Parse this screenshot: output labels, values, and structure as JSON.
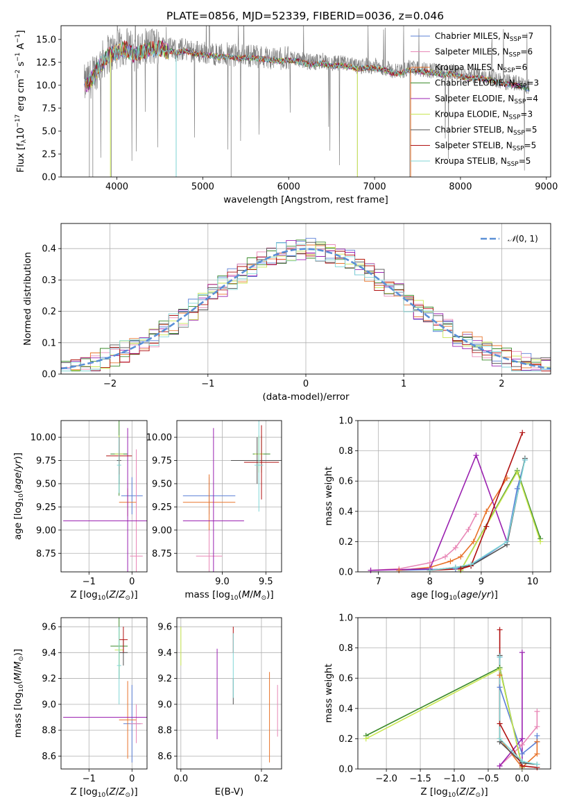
{
  "title": "PLATE=0856, MJD=52339, FIBERID=0036, z=0.046",
  "colors": {
    "data": "#808080",
    "chabrier_miles": "#5a7fd6",
    "salpeter_miles": "#e887b6",
    "kroupa_miles": "#e8732a",
    "chabrier_elodie": "#3a8a2a",
    "salpeter_elodie": "#9a20b0",
    "kroupa_elodie": "#c8e650",
    "chabrier_stelib": "#505050",
    "salpeter_stelib": "#b01010",
    "kroupa_stelib": "#7fd6d6",
    "gaussian": "#5a8fd6"
  },
  "chart_data": [
    {
      "type": "line",
      "title": "PLATE=0856, MJD=52339, FIBERID=0036, z=0.046",
      "xlabel": "wavelength [Angstrom, rest frame]",
      "ylabel": "Flux [fλ10⁻¹⁷ erg cm⁻² s⁻¹ A⁻¹]",
      "xlim": [
        3350,
        9050
      ],
      "ylim": [
        0,
        16.5
      ],
      "xticks": [
        4000,
        5000,
        6000,
        7000,
        8000,
        9000
      ],
      "yticks": [
        0.0,
        2.5,
        5.0,
        7.5,
        10.0,
        12.5,
        15.0
      ],
      "legend_position": "top-right",
      "data_series": {
        "name": "data",
        "x": [
          3620,
          3700,
          3800,
          3900,
          4000,
          4100,
          4200,
          4300,
          4400,
          4500,
          4600,
          4700,
          4800,
          4900,
          5000,
          5100,
          5200,
          5300,
          5400,
          5500,
          5600,
          5700,
          5800,
          5900,
          6000,
          6100,
          6200,
          6300,
          6400,
          6500,
          6600,
          6700,
          6800,
          6900,
          7000,
          7100,
          7200,
          7300,
          7400,
          7500,
          7600,
          7700,
          7800,
          7900,
          8000,
          8100,
          8200,
          8300,
          8400,
          8500,
          8600,
          8700,
          8800
        ],
        "y": [
          10.0,
          10.8,
          12.3,
          13.5,
          13.8,
          14.3,
          13.6,
          13.9,
          14.2,
          14.3,
          14.0,
          13.8,
          14.0,
          13.7,
          13.6,
          13.5,
          13.3,
          13.4,
          13.2,
          13.3,
          13.2,
          13.1,
          13.0,
          12.9,
          13.0,
          12.9,
          12.6,
          12.5,
          12.7,
          12.3,
          12.4,
          12.3,
          12.0,
          12.2,
          12.1,
          12.0,
          11.6,
          11.5,
          11.9,
          11.8,
          11.7,
          11.6,
          11.4,
          11.5,
          11.2,
          11.0,
          11.1,
          10.9,
          10.7,
          10.4,
          10.3,
          10.1,
          9.8
        ]
      },
      "series": [
        {
          "name": "Chabrier MILES, N_SSP=7",
          "color_key": "chabrier_miles"
        },
        {
          "name": "Salpeter MILES, N_SSP=6",
          "color_key": "salpeter_miles"
        },
        {
          "name": "Kroupa MILES, N_SSP=6",
          "color_key": "kroupa_miles"
        },
        {
          "name": "Chabrier ELODIE, N_SSP=3",
          "color_key": "chabrier_elodie"
        },
        {
          "name": "Salpeter ELODIE, N_SSP=4",
          "color_key": "salpeter_elodie"
        },
        {
          "name": "Kroupa ELODIE, N_SSP=3",
          "color_key": "kroupa_elodie"
        },
        {
          "name": "Chabrier STELIB, N_SSP=5",
          "color_key": "chabrier_stelib"
        },
        {
          "name": "Salpeter STELIB, N_SSP=5",
          "color_key": "salpeter_stelib"
        },
        {
          "name": "Kroupa STELIB, N_SSP=5",
          "color_key": "kroupa_stelib"
        }
      ],
      "legend": [
        {
          "label": "Chabrier MILES, N",
          "sub": "SSP",
          "tail": "=7",
          "color_key": "chabrier_miles"
        },
        {
          "label": "Salpeter MILES, N",
          "sub": "SSP",
          "tail": "=6",
          "color_key": "salpeter_miles"
        },
        {
          "label": "Kroupa MILES, N",
          "sub": "SSP",
          "tail": "=6",
          "color_key": "kroupa_miles"
        },
        {
          "label": "Chabrier ELODIE, N",
          "sub": "SSP",
          "tail": "=3",
          "color_key": "chabrier_elodie"
        },
        {
          "label": "Salpeter ELODIE, N",
          "sub": "SSP",
          "tail": "=4",
          "color_key": "salpeter_elodie"
        },
        {
          "label": "Kroupa ELODIE, N",
          "sub": "SSP",
          "tail": "=3",
          "color_key": "kroupa_elodie"
        },
        {
          "label": "Chabrier STELIB, N",
          "sub": "SSP",
          "tail": "=5",
          "color_key": "chabrier_stelib"
        },
        {
          "label": "Salpeter STELIB, N",
          "sub": "SSP",
          "tail": "=5",
          "color_key": "salpeter_stelib"
        },
        {
          "label": "Kroupa STELIB, N",
          "sub": "SSP",
          "tail": "=5",
          "color_key": "kroupa_stelib"
        }
      ]
    },
    {
      "type": "histogram",
      "xlabel": "(data-model)/error",
      "ylabel": "Normed distribution",
      "xlim": [
        -2.5,
        2.5
      ],
      "ylim": [
        0,
        0.48
      ],
      "xticks": [
        -2,
        -1,
        0,
        1,
        2
      ],
      "yticks": [
        0.0,
        0.1,
        0.2,
        0.3,
        0.4
      ],
      "grid": true,
      "legend_position": "top-right",
      "reference_curve": {
        "label": "N(0,1)",
        "mean": 0,
        "sigma": 1
      },
      "bin_width": 0.1
    },
    {
      "type": "errorbar",
      "xlabel": "Z [log10(Z/Z⊙)]",
      "ylabel": "age [log10(age/yr)]",
      "xlim": [
        -1.65,
        0.35
      ],
      "ylim": [
        8.55,
        10.18
      ],
      "xticks": [
        -1,
        0
      ],
      "yticks": [
        8.75,
        9.0,
        9.25,
        9.5,
        9.75,
        10.0
      ],
      "grid": true,
      "points": [
        {
          "color_key": "chabrier_miles",
          "x": 0.0,
          "y": 9.37,
          "xerr": 0.25,
          "yerr": 0.2
        },
        {
          "color_key": "salpeter_miles",
          "x": 0.1,
          "y": 8.72,
          "xerr": 0.15,
          "yerr": 1.15
        },
        {
          "color_key": "kroupa_miles",
          "x": -0.1,
          "y": 9.3,
          "xerr": 0.2,
          "yerr": 0.15
        },
        {
          "color_key": "chabrier_elodie",
          "x": -0.3,
          "y": 9.82,
          "xerr": 0.2,
          "yerr": 0.45
        },
        {
          "color_key": "salpeter_elodie",
          "x": -0.1,
          "y": 9.1,
          "xerr": 1.5,
          "yerr": 1.0
        },
        {
          "color_key": "kroupa_elodie",
          "x": -0.3,
          "y": 9.82,
          "xerr": 0.1,
          "yerr": 0.2
        },
        {
          "color_key": "chabrier_stelib",
          "x": -0.3,
          "y": 9.75,
          "xerr": 0.05,
          "yerr": 0.25
        },
        {
          "color_key": "salpeter_stelib",
          "x": -0.3,
          "y": 9.8,
          "xerr": 0.3,
          "yerr": 0.2
        },
        {
          "color_key": "kroupa_stelib",
          "x": -0.3,
          "y": 9.7,
          "xerr": 0.05,
          "yerr": 0.3
        }
      ]
    },
    {
      "type": "errorbar",
      "xlabel": "mass [log10(M/M⊙)]",
      "ylabel": "",
      "xlim": [
        8.48,
        9.68
      ],
      "ylim": [
        8.55,
        10.18
      ],
      "xticks": [
        9.0,
        9.5
      ],
      "yticks": [
        8.75,
        9.0,
        9.25,
        9.5,
        9.75,
        10.0
      ],
      "grid": true,
      "points": [
        {
          "color_key": "chabrier_miles",
          "x": 8.85,
          "y": 9.37,
          "xerr": 0.3,
          "yerr": 0.2
        },
        {
          "color_key": "salpeter_miles",
          "x": 8.85,
          "y": 8.72,
          "xerr": 0.15,
          "yerr": 0.3
        },
        {
          "color_key": "kroupa_miles",
          "x": 8.85,
          "y": 9.3,
          "xerr": 0.3,
          "yerr": 0.3
        },
        {
          "color_key": "chabrier_elodie",
          "x": 9.45,
          "y": 9.82,
          "xerr": 0.1,
          "yerr": 0.2
        },
        {
          "color_key": "salpeter_elodie",
          "x": 8.9,
          "y": 9.1,
          "xerr": 0.35,
          "yerr": 1.0
        },
        {
          "color_key": "kroupa_elodie",
          "x": 9.42,
          "y": 9.82,
          "xerr": 0.05,
          "yerr": 0.2
        },
        {
          "color_key": "chabrier_stelib",
          "x": 9.4,
          "y": 9.75,
          "xerr": 0.3,
          "yerr": 0.25
        },
        {
          "color_key": "salpeter_stelib",
          "x": 9.45,
          "y": 9.73,
          "xerr": 0.2,
          "yerr": 0.4
        },
        {
          "color_key": "kroupa_stelib",
          "x": 9.42,
          "y": 9.7,
          "xerr": 0.05,
          "yerr": 0.5
        }
      ]
    },
    {
      "type": "line",
      "xlabel": "age [log10(age/yr)]",
      "ylabel": "mass weight",
      "xlim": [
        6.6,
        10.35
      ],
      "ylim": [
        0,
        1.0
      ],
      "xticks": [
        7,
        8,
        9,
        10
      ],
      "yticks": [
        0.0,
        0.2,
        0.4,
        0.6,
        0.8,
        1.0
      ],
      "grid": true,
      "series": [
        {
          "color_key": "chabrier_miles",
          "x": [
            7.4,
            8.5,
            8.8,
            9.5,
            9.7,
            9.85
          ],
          "y": [
            0.01,
            0.02,
            0.04,
            0.2,
            0.55,
            0.74
          ]
        },
        {
          "color_key": "salpeter_miles",
          "x": [
            6.85,
            7.4,
            8.0,
            8.3,
            8.5,
            8.75,
            8.9
          ],
          "y": [
            0.01,
            0.02,
            0.06,
            0.1,
            0.16,
            0.28,
            0.38
          ]
        },
        {
          "color_key": "kroupa_miles",
          "x": [
            7.4,
            8.0,
            8.4,
            8.6,
            8.85,
            9.1,
            9.5
          ],
          "y": [
            0.01,
            0.03,
            0.07,
            0.1,
            0.2,
            0.4,
            0.62
          ]
        },
        {
          "color_key": "chabrier_elodie",
          "x": [
            8.6,
            9.7,
            10.15
          ],
          "y": [
            0.01,
            0.67,
            0.22
          ]
        },
        {
          "color_key": "salpeter_elodie",
          "x": [
            6.85,
            8.0,
            8.9,
            9.5
          ],
          "y": [
            0.01,
            0.02,
            0.77,
            0.2
          ]
        },
        {
          "color_key": "kroupa_elodie",
          "x": [
            8.6,
            9.7,
            10.15
          ],
          "y": [
            0.01,
            0.66,
            0.2
          ]
        },
        {
          "color_key": "chabrier_stelib",
          "x": [
            8.0,
            8.5,
            8.8,
            9.5,
            9.85
          ],
          "y": [
            0.01,
            0.03,
            0.04,
            0.18,
            0.75
          ]
        },
        {
          "color_key": "salpeter_stelib",
          "x": [
            8.0,
            8.6,
            8.8,
            9.1,
            9.8
          ],
          "y": [
            0.01,
            0.02,
            0.04,
            0.3,
            0.92
          ]
        },
        {
          "color_key": "kroupa_stelib",
          "x": [
            8.0,
            8.5,
            8.8,
            9.5,
            9.85
          ],
          "y": [
            0.01,
            0.03,
            0.05,
            0.2,
            0.74
          ]
        }
      ]
    },
    {
      "type": "errorbar",
      "xlabel": "Z [log10(Z/Z⊙)]",
      "ylabel": "mass [log10(M/M⊙)]",
      "xlim": [
        -1.65,
        0.35
      ],
      "ylim": [
        8.5,
        9.67
      ],
      "xticks": [
        -1,
        0
      ],
      "yticks": [
        8.6,
        8.8,
        9.0,
        9.2,
        9.4,
        9.6
      ],
      "grid": true,
      "points": [
        {
          "color_key": "chabrier_miles",
          "x": 0.0,
          "y": 8.85,
          "xerr": 0.2,
          "yerr": 0.3
        },
        {
          "color_key": "salpeter_miles",
          "x": 0.1,
          "y": 8.85,
          "xerr": 0.15,
          "yerr": 0.15
        },
        {
          "color_key": "kroupa_miles",
          "x": -0.1,
          "y": 8.88,
          "xerr": 0.2,
          "yerr": 0.3
        },
        {
          "color_key": "chabrier_elodie",
          "x": -0.3,
          "y": 9.45,
          "xerr": 0.2,
          "yerr": 0.25
        },
        {
          "color_key": "salpeter_elodie",
          "x": -0.1,
          "y": 8.9,
          "xerr": 1.5,
          "yerr": 0.0
        },
        {
          "color_key": "kroupa_elodie",
          "x": -0.3,
          "y": 9.42,
          "xerr": 0.1,
          "yerr": 0.15
        },
        {
          "color_key": "chabrier_stelib",
          "x": -0.2,
          "y": 9.4,
          "xerr": 0.1,
          "yerr": 0.1
        },
        {
          "color_key": "salpeter_stelib",
          "x": -0.2,
          "y": 9.5,
          "xerr": 0.1,
          "yerr": 0.1
        },
        {
          "color_key": "kroupa_stelib",
          "x": -0.3,
          "y": 9.3,
          "xerr": 0.05,
          "yerr": 0.3
        }
      ]
    },
    {
      "type": "errorbar",
      "xlabel": "E(B-V)",
      "ylabel": "",
      "xlim": [
        -0.01,
        0.25
      ],
      "ylim": [
        8.5,
        9.67
      ],
      "xticks": [
        0.0,
        0.2
      ],
      "yticks": [
        8.6,
        8.8,
        9.0,
        9.2,
        9.4,
        9.6
      ],
      "grid": true,
      "points": [
        {
          "color_key": "kroupa_elodie",
          "x": 0.0,
          "y": 9.45,
          "xerr": 0.0,
          "yerr": 0.15
        },
        {
          "color_key": "salpeter_elodie",
          "x": 0.09,
          "y": 9.08,
          "xerr": 0.0,
          "yerr": 0.35
        },
        {
          "color_key": "chabrier_stelib",
          "x": 0.13,
          "y": 9.1,
          "xerr": 0.0,
          "yerr": 0.1
        },
        {
          "color_key": "salpeter_stelib",
          "x": 0.13,
          "y": 9.5,
          "xerr": 0.0,
          "yerr": 0.1
        },
        {
          "color_key": "kroupa_stelib",
          "x": 0.13,
          "y": 9.3,
          "xerr": 0.0,
          "yerr": 0.25
        },
        {
          "color_key": "kroupa_miles",
          "x": 0.22,
          "y": 8.9,
          "xerr": 0.0,
          "yerr": 0.35
        },
        {
          "color_key": "salpeter_miles",
          "x": 0.24,
          "y": 8.95,
          "xerr": 0.0,
          "yerr": 0.2
        }
      ]
    },
    {
      "type": "line",
      "xlabel": "Z [log10(Z/Z⊙)]",
      "ylabel": "mass weight",
      "xlim": [
        -2.42,
        0.42
      ],
      "ylim": [
        0,
        1.0
      ],
      "xticks": [
        -2.0,
        -1.5,
        -1.0,
        -0.5,
        0.0
      ],
      "yticks": [
        0.0,
        0.2,
        0.4,
        0.6,
        0.8,
        1.0
      ],
      "grid": true,
      "series": [
        {
          "color_key": "chabrier_miles",
          "x": [
            -0.33,
            -0.33,
            0.0,
            0.22,
            0.22
          ],
          "y": [
            0.74,
            0.54,
            0.1,
            0.18,
            0.22
          ]
        },
        {
          "color_key": "salpeter_miles",
          "x": [
            -0.33,
            0.0,
            0.22,
            0.22
          ],
          "y": [
            0.02,
            0.16,
            0.28,
            0.38
          ]
        },
        {
          "color_key": "kroupa_miles",
          "x": [
            -0.33,
            -0.33,
            0.0,
            0.22,
            0.22
          ],
          "y": [
            0.62,
            0.2,
            0.01,
            0.1,
            0.18
          ]
        },
        {
          "color_key": "chabrier_elodie",
          "x": [
            -2.3,
            -0.33,
            0.0
          ],
          "y": [
            0.22,
            0.67,
            0.01
          ]
        },
        {
          "color_key": "salpeter_elodie",
          "x": [
            -0.33,
            0.0,
            0.0,
            0.0
          ],
          "y": [
            0.02,
            0.2,
            0.77,
            0.01
          ]
        },
        {
          "color_key": "kroupa_elodie",
          "x": [
            -2.3,
            -0.33,
            0.0
          ],
          "y": [
            0.2,
            0.66,
            0.01
          ]
        },
        {
          "color_key": "chabrier_stelib",
          "x": [
            -0.33,
            -0.33,
            0.0,
            0.22
          ],
          "y": [
            0.75,
            0.18,
            0.04,
            0.03
          ]
        },
        {
          "color_key": "salpeter_stelib",
          "x": [
            -0.33,
            -0.33,
            0.0,
            0.22
          ],
          "y": [
            0.92,
            0.3,
            0.02,
            0.01
          ]
        },
        {
          "color_key": "kroupa_stelib",
          "x": [
            -0.33,
            -0.33,
            0.0,
            0.22
          ],
          "y": [
            0.74,
            0.2,
            0.05,
            0.03
          ]
        }
      ]
    }
  ]
}
